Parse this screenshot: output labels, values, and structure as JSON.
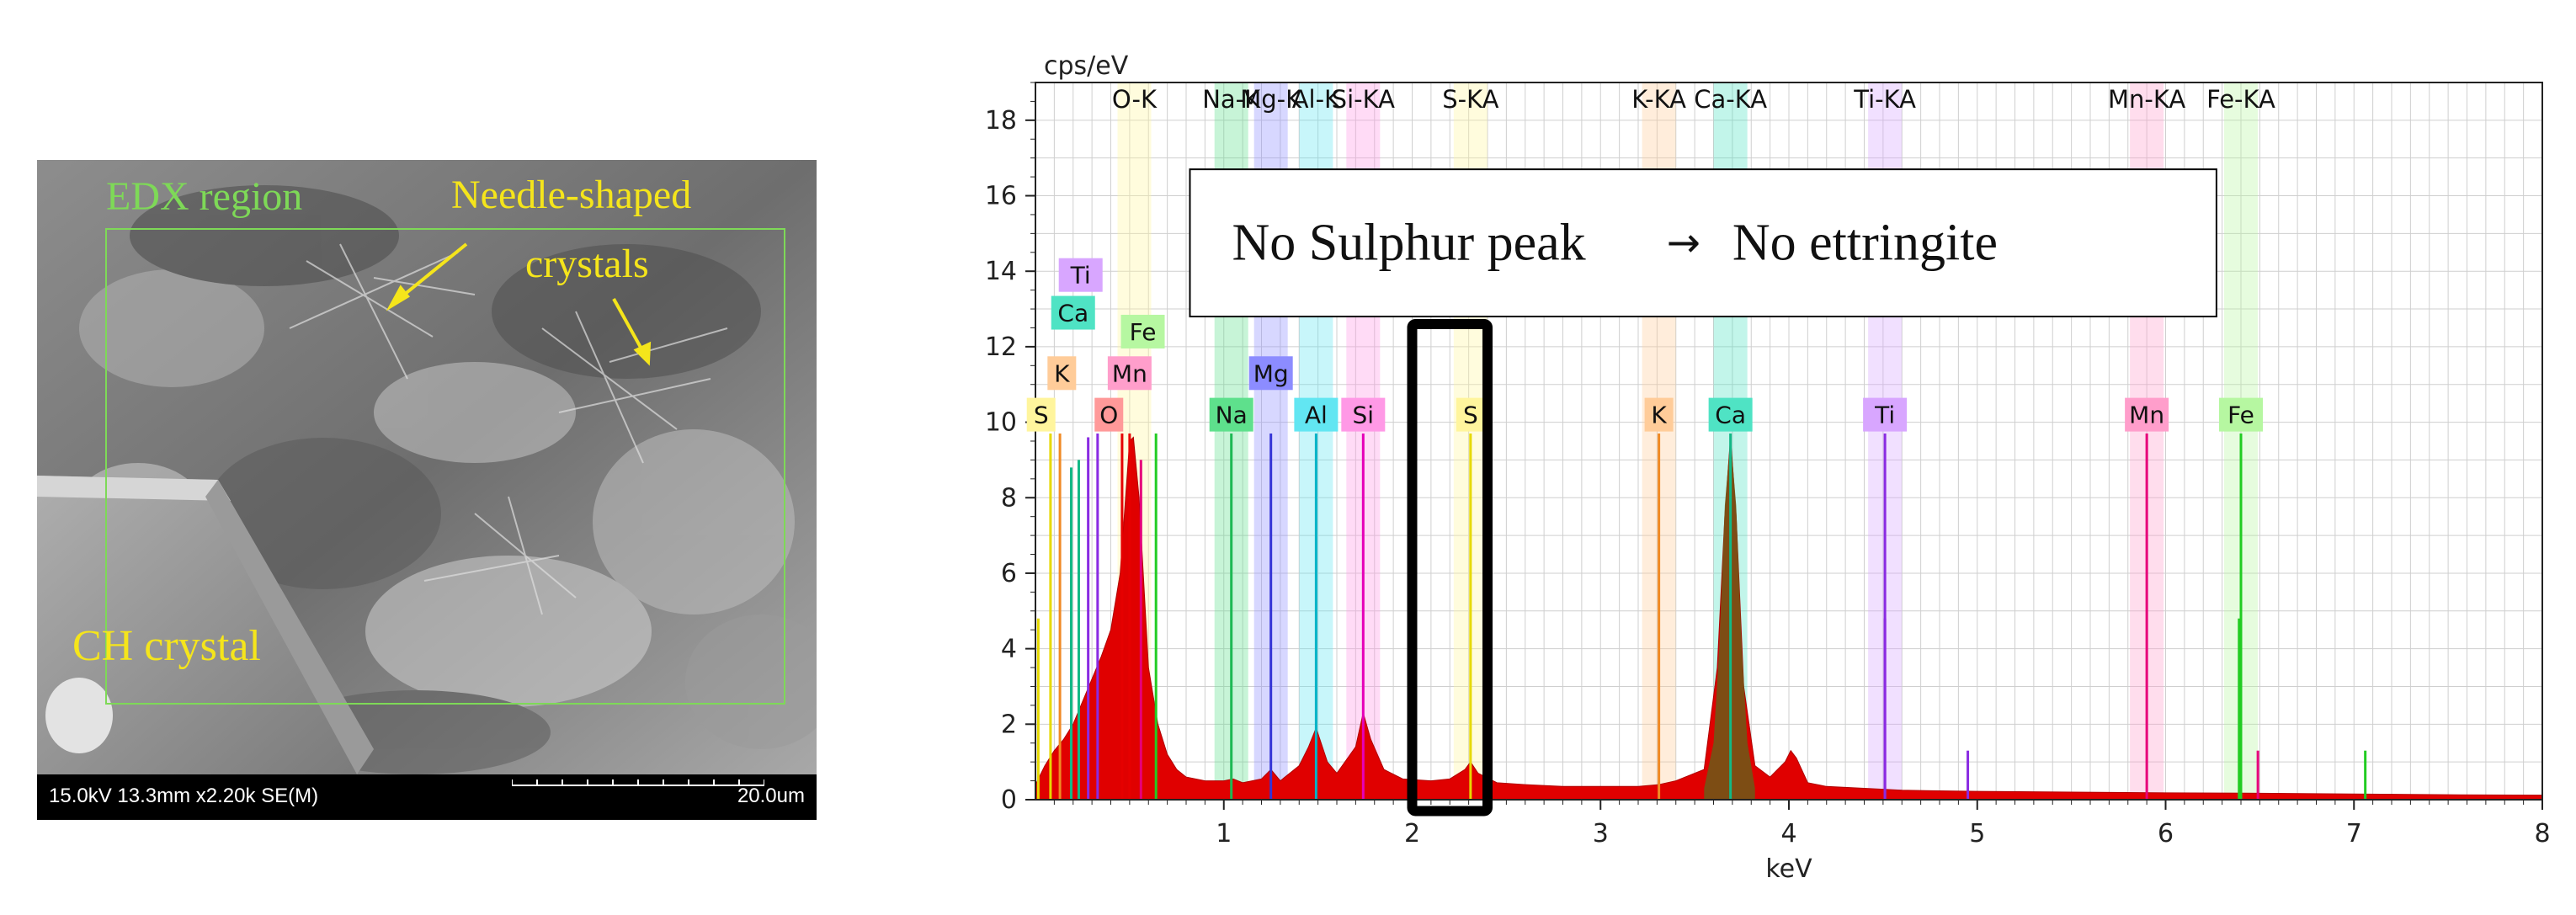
{
  "sem": {
    "labels": {
      "edx_region": "EDX region",
      "needle_line1": "Needle-shaped",
      "needle_line2": "crystals",
      "ch_crystal": "CH crystal"
    },
    "footer": {
      "left": "15.0kV 13.3mm x2.20k SE(M)",
      "right": "20.0um"
    }
  },
  "chart_data": {
    "type": "spectrum",
    "ylabel": "cps/eV",
    "xlabel": "keV",
    "xlim": [
      0.0,
      8.0
    ],
    "ylim": [
      0,
      19
    ],
    "xticks": [
      1,
      2,
      3,
      4,
      5,
      6,
      7,
      8
    ],
    "yticks": [
      0,
      2,
      4,
      6,
      8,
      10,
      12,
      14,
      16,
      18
    ],
    "grid": true,
    "top_labels": [
      {
        "text": "O-K",
        "x": 0.525
      },
      {
        "text": "Na-K",
        "x": 1.04
      },
      {
        "text": "Mg-K",
        "x": 1.25
      },
      {
        "text": "Al-K",
        "x": 1.49
      },
      {
        "text": "Si-KA",
        "x": 1.74
      },
      {
        "text": "S-KA",
        "x": 2.31
      },
      {
        "text": "K-KA",
        "x": 3.31
      },
      {
        "text": "Ca-KA",
        "x": 3.69
      },
      {
        "text": "Ti-KA",
        "x": 4.51
      },
      {
        "text": "Mn-KA",
        "x": 5.9
      },
      {
        "text": "Fe-KA",
        "x": 6.4
      }
    ],
    "element_markers": [
      {
        "element": "S",
        "x": 0.03,
        "y": 9.7,
        "color": "#fff59d",
        "line": "#e6d900",
        "line_top": 9.7
      },
      {
        "element": "K",
        "x": 0.145,
        "y": 11.3,
        "color": "#ffcc99",
        "line": "#f08a24",
        "line_top": 9.7
      },
      {
        "element": "Ca",
        "x": 0.19,
        "y": 12.9,
        "color": "#4fe3c4",
        "line": "#12b886",
        "line_top": 8.8
      },
      {
        "element": "Ti",
        "x": 0.24,
        "y": 13.9,
        "color": "#d8a6ff",
        "line": "#8a2be2",
        "line_top": 9.7
      },
      {
        "element": "O",
        "x": 0.38,
        "y": 9.7,
        "color": "#ff9999",
        "line": "#e60000",
        "line_top": 9.7
      },
      {
        "element": "Mn",
        "x": 0.49,
        "y": 11.3,
        "color": "#ff9ecb",
        "line": "#e6007a",
        "line_top": 9.6
      },
      {
        "element": "Fe",
        "x": 0.57,
        "y": 12.4,
        "color": "#b6f7a1",
        "line": "#22cc22",
        "line_top": 9.7
      },
      {
        "element": "Na",
        "x": 0.0,
        "y": 9.7,
        "color": "#5ee08c",
        "line": "#1db954",
        "line_top": 9.7,
        "at": 1.04
      },
      {
        "element": "Mg",
        "x": 0.0,
        "y": 11.3,
        "color": "#8c8cff",
        "line": "#3434d6",
        "line_top": 9.7,
        "at": 1.25
      },
      {
        "element": "Al",
        "x": 0.0,
        "y": 9.7,
        "color": "#62e6f2",
        "line": "#00b3c7",
        "line_top": 9.7,
        "at": 1.49
      },
      {
        "element": "Si",
        "x": 0.0,
        "y": 9.7,
        "color": "#ff99e6",
        "line": "#e600b8",
        "line_top": 9.7,
        "at": 1.74
      }
    ],
    "peak_labels": [
      {
        "element": "Na",
        "x": 1.04,
        "color": "#5ee08c"
      },
      {
        "element": "Mg",
        "x": 1.25,
        "color": "#8c8cff",
        "raised": true
      },
      {
        "element": "Al",
        "x": 1.49,
        "color": "#62e6f2"
      },
      {
        "element": "Si",
        "x": 1.74,
        "color": "#ff99e6"
      },
      {
        "element": "S",
        "x": 2.31,
        "color": "#fff59d"
      },
      {
        "element": "K",
        "x": 3.31,
        "color": "#ffcc99"
      },
      {
        "element": "Ca",
        "x": 3.69,
        "color": "#4fe3c4"
      },
      {
        "element": "Ti",
        "x": 4.51,
        "color": "#d8a6ff"
      },
      {
        "element": "Mn",
        "x": 5.9,
        "color": "#ff9ecb"
      },
      {
        "element": "Fe",
        "x": 6.4,
        "color": "#b6f7a1"
      }
    ],
    "element_lines": [
      {
        "x": 0.015,
        "top": 4.8,
        "color": "#e6d900"
      },
      {
        "x": 0.08,
        "top": 9.7,
        "color": "#e6d900"
      },
      {
        "x": 0.13,
        "top": 9.7,
        "color": "#f08a24"
      },
      {
        "x": 0.19,
        "top": 8.8,
        "color": "#12b886"
      },
      {
        "x": 0.23,
        "top": 9.0,
        "color": "#12b886"
      },
      {
        "x": 0.28,
        "top": 9.6,
        "color": "#8a2be2"
      },
      {
        "x": 0.33,
        "top": 9.7,
        "color": "#8a2be2"
      },
      {
        "x": 0.46,
        "top": 9.7,
        "color": "#e60000"
      },
      {
        "x": 0.5,
        "top": 9.7,
        "color": "#e60000"
      },
      {
        "x": 0.56,
        "top": 9.0,
        "color": "#e6007a"
      },
      {
        "x": 0.64,
        "top": 9.7,
        "color": "#22cc22"
      },
      {
        "x": 1.04,
        "top": 9.7,
        "color": "#1db954"
      },
      {
        "x": 1.25,
        "top": 9.7,
        "color": "#3434d6"
      },
      {
        "x": 1.49,
        "top": 9.7,
        "color": "#00b3c7"
      },
      {
        "x": 1.74,
        "top": 9.7,
        "color": "#e600b8"
      },
      {
        "x": 2.31,
        "top": 9.7,
        "color": "#e6d900"
      },
      {
        "x": 3.31,
        "top": 9.7,
        "color": "#f08a24"
      },
      {
        "x": 3.69,
        "top": 9.7,
        "color": "#12b886"
      },
      {
        "x": 4.51,
        "top": 9.7,
        "color": "#8a2be2"
      },
      {
        "x": 4.51,
        "top": 4.8,
        "color": "#8a2be2"
      },
      {
        "x": 4.95,
        "top": 1.3,
        "color": "#8a2be2"
      },
      {
        "x": 5.9,
        "top": 9.7,
        "color": "#e6007a"
      },
      {
        "x": 6.4,
        "top": 9.7,
        "color": "#22cc22"
      },
      {
        "x": 6.39,
        "top": 4.8,
        "color": "#22cc22"
      },
      {
        "x": 6.49,
        "top": 1.3,
        "color": "#e6007a"
      },
      {
        "x": 7.06,
        "top": 1.3,
        "color": "#22cc22"
      }
    ],
    "spectrum": {
      "x": [
        0.0,
        0.05,
        0.1,
        0.15,
        0.2,
        0.25,
        0.3,
        0.35,
        0.4,
        0.45,
        0.5,
        0.52,
        0.55,
        0.6,
        0.65,
        0.7,
        0.75,
        0.8,
        0.9,
        1.0,
        1.05,
        1.1,
        1.2,
        1.25,
        1.3,
        1.4,
        1.45,
        1.49,
        1.55,
        1.6,
        1.7,
        1.74,
        1.78,
        1.85,
        1.95,
        2.1,
        2.2,
        2.28,
        2.31,
        2.35,
        2.45,
        2.6,
        2.8,
        3.0,
        3.2,
        3.31,
        3.4,
        3.55,
        3.62,
        3.66,
        3.69,
        3.72,
        3.76,
        3.82,
        3.9,
        3.98,
        4.01,
        4.04,
        4.1,
        4.2,
        4.4,
        4.6,
        5.0,
        5.5,
        6.0,
        6.5,
        7.0,
        7.5,
        8.0
      ],
      "y": [
        0.4,
        0.9,
        1.3,
        1.6,
        2.0,
        2.6,
        3.2,
        3.8,
        4.5,
        6.0,
        9.5,
        9.6,
        8.0,
        3.5,
        2.0,
        1.2,
        0.8,
        0.6,
        0.5,
        0.5,
        0.55,
        0.45,
        0.55,
        0.8,
        0.5,
        0.9,
        1.4,
        1.9,
        1.0,
        0.7,
        1.4,
        2.3,
        1.6,
        0.8,
        0.55,
        0.5,
        0.55,
        0.8,
        1.0,
        0.7,
        0.45,
        0.4,
        0.35,
        0.35,
        0.35,
        0.4,
        0.5,
        0.8,
        3.5,
        7.5,
        9.6,
        7.5,
        3.0,
        0.9,
        0.6,
        1.0,
        1.3,
        1.1,
        0.45,
        0.35,
        0.3,
        0.25,
        0.22,
        0.2,
        0.18,
        0.17,
        0.15,
        0.13,
        0.12
      ]
    },
    "ca_peak": {
      "x": [
        3.55,
        3.6,
        3.63,
        3.66,
        3.69,
        3.72,
        3.75,
        3.78,
        3.82
      ],
      "y": [
        0.3,
        1.5,
        4.0,
        7.8,
        9.6,
        7.8,
        4.0,
        1.5,
        0.3
      ]
    },
    "highlight_box": {
      "x0": 2.0,
      "x1": 2.4,
      "y0": -0.3,
      "y1": 12.6
    },
    "annotation": {
      "text": "No Sulphur peak",
      "arrow": "→",
      "result": "No ettringite",
      "x0": 0.82,
      "x1": 6.27,
      "y0": 12.8,
      "y1": 16.7
    }
  },
  "colors": {
    "spectrum_fill": "#e00000",
    "ca_fill": "#6b5a18",
    "grid": "#cfcfcf"
  }
}
